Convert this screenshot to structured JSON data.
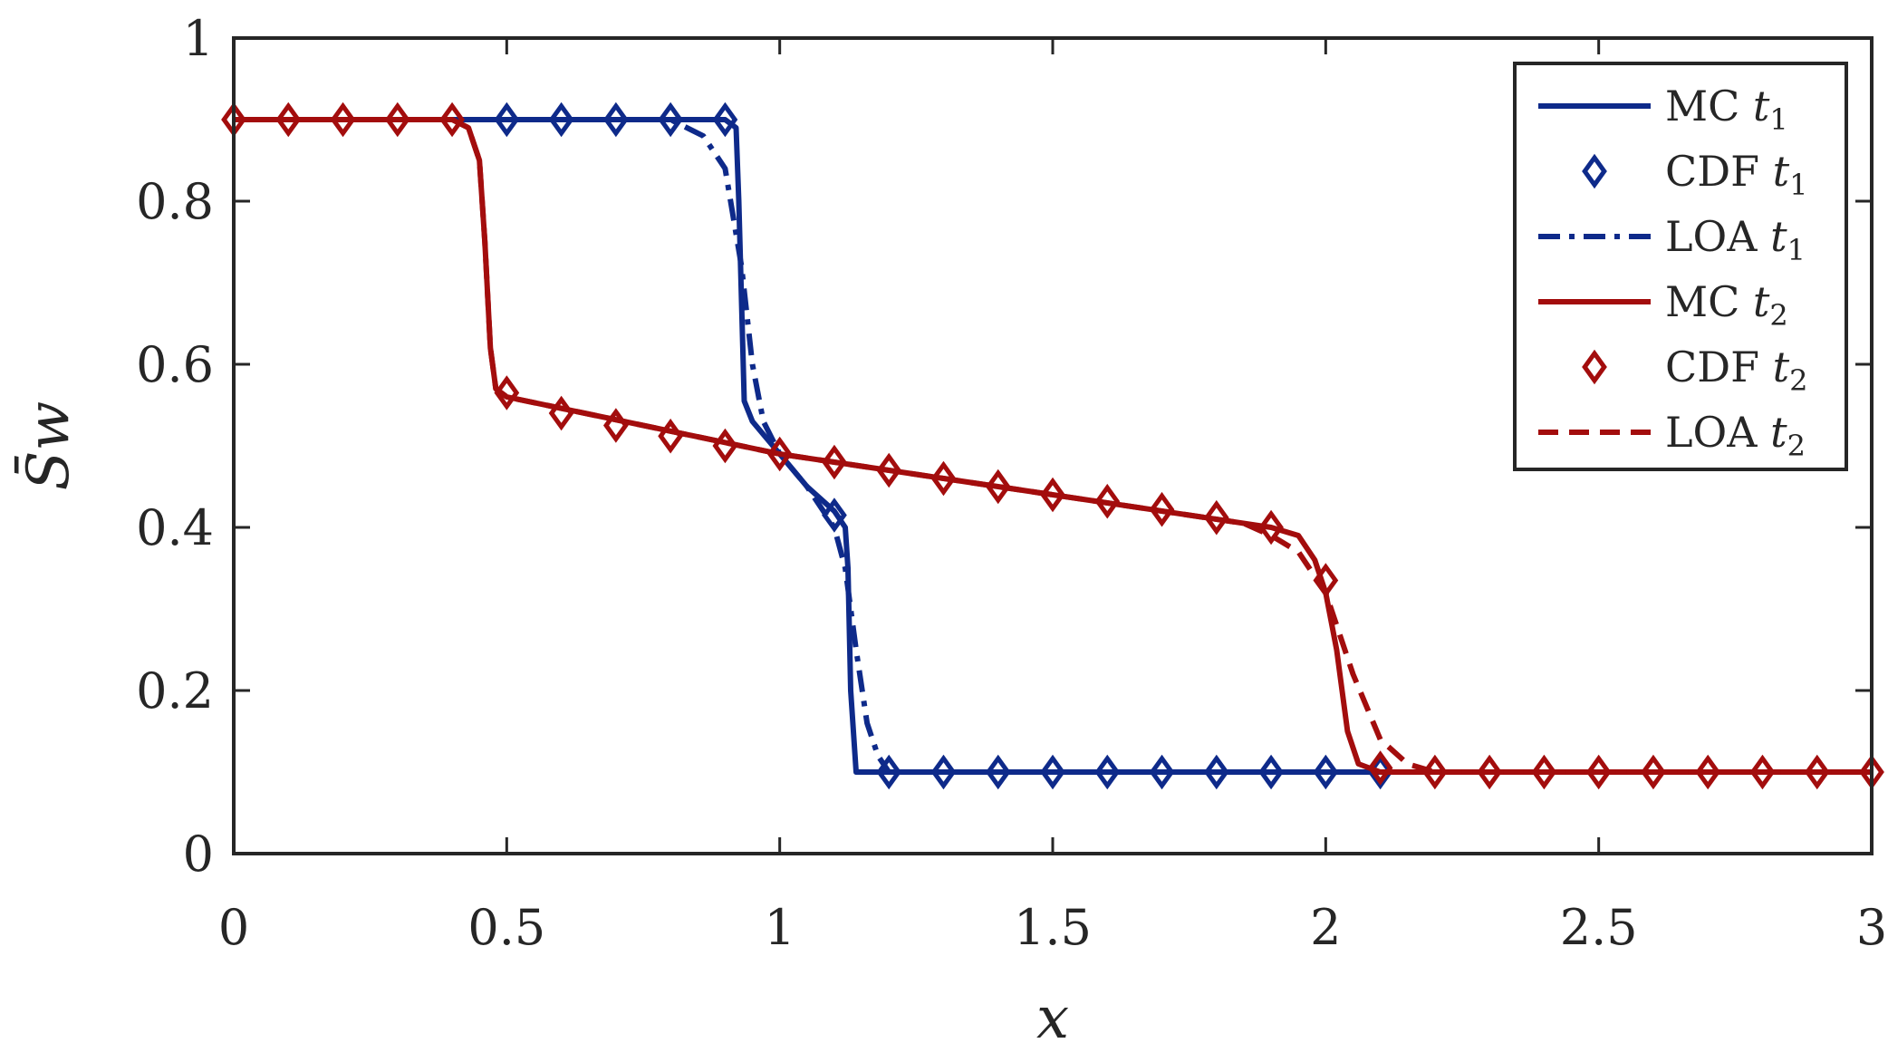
{
  "chart_data": {
    "type": "line",
    "xlabel": "x",
    "ylabel": "S̄w",
    "xlim": [
      0,
      3
    ],
    "ylim": [
      0,
      1
    ],
    "xticks": [
      0,
      0.5,
      1,
      1.5,
      2,
      2.5,
      3
    ],
    "xtick_labels": [
      "0",
      "0.5",
      "1",
      "1.5",
      "2",
      "2.5",
      "3"
    ],
    "yticks": [
      0,
      0.2,
      0.4,
      0.6,
      0.8,
      1
    ],
    "ytick_labels": [
      "0",
      "0.2",
      "0.4",
      "0.6",
      "0.8",
      "1"
    ],
    "grid": false,
    "legend_position": "top-right",
    "colors": {
      "t1": "#0e2a8a",
      "t2": "#a30d0d",
      "axis": "#262626"
    },
    "series": [
      {
        "name": "MC t1",
        "label": "MC",
        "sub": "1",
        "color": "#0e2a8a",
        "style": "solid",
        "marker": "none",
        "x": [
          0,
          0.8,
          0.88,
          0.9,
          0.92,
          0.925,
          0.935,
          0.95,
          1.0,
          1.05,
          1.1,
          1.12,
          1.125,
          1.13,
          1.14,
          1.15,
          1.2,
          1.5,
          2.0,
          2.1
        ],
        "y": [
          0.9,
          0.9,
          0.9,
          0.9,
          0.89,
          0.8,
          0.555,
          0.53,
          0.49,
          0.45,
          0.42,
          0.4,
          0.35,
          0.2,
          0.1,
          0.1,
          0.1,
          0.1,
          0.1,
          0.1
        ]
      },
      {
        "name": "CDF t1",
        "label": "CDF",
        "sub": "1",
        "color": "#0e2a8a",
        "style": "none",
        "marker": "diamond",
        "x": [
          0.5,
          0.6,
          0.7,
          0.8,
          0.9,
          1.1,
          1.2,
          1.3,
          1.4,
          1.5,
          1.6,
          1.7,
          1.8,
          1.9,
          2.0,
          2.1
        ],
        "y": [
          0.9,
          0.9,
          0.9,
          0.9,
          0.9,
          0.415,
          0.1,
          0.1,
          0.1,
          0.1,
          0.1,
          0.1,
          0.1,
          0.1,
          0.1,
          0.1
        ]
      },
      {
        "name": "LOA t1",
        "label": "LOA",
        "sub": "1",
        "color": "#0e2a8a",
        "style": "dashdot",
        "marker": "none",
        "x": [
          0,
          0.8,
          0.86,
          0.9,
          0.93,
          0.95,
          0.97,
          1.0,
          1.05,
          1.1,
          1.12,
          1.14,
          1.16,
          1.18,
          1.2,
          1.25,
          2.1
        ],
        "y": [
          0.9,
          0.9,
          0.88,
          0.84,
          0.72,
          0.6,
          0.53,
          0.49,
          0.45,
          0.4,
          0.35,
          0.25,
          0.16,
          0.12,
          0.1,
          0.1,
          0.1
        ]
      },
      {
        "name": "MC t2",
        "label": "MC",
        "sub": "2",
        "color": "#a30d0d",
        "style": "solid",
        "marker": "none",
        "x": [
          0,
          0.4,
          0.43,
          0.45,
          0.46,
          0.47,
          0.48,
          0.5,
          1.0,
          1.5,
          1.9,
          1.95,
          1.98,
          2.0,
          2.02,
          2.04,
          2.06,
          2.1,
          3.0
        ],
        "y": [
          0.9,
          0.9,
          0.89,
          0.85,
          0.75,
          0.62,
          0.57,
          0.56,
          0.49,
          0.44,
          0.4,
          0.39,
          0.36,
          0.32,
          0.25,
          0.15,
          0.11,
          0.1,
          0.1
        ]
      },
      {
        "name": "CDF t2",
        "label": "CDF",
        "sub": "2",
        "color": "#a30d0d",
        "style": "none",
        "marker": "diamond",
        "x": [
          0,
          0.1,
          0.2,
          0.3,
          0.4,
          0.5,
          0.6,
          0.7,
          0.8,
          0.9,
          1.0,
          1.1,
          1.2,
          1.3,
          1.4,
          1.5,
          1.6,
          1.7,
          1.8,
          1.9,
          2.0,
          2.1,
          2.2,
          2.3,
          2.4,
          2.5,
          2.6,
          2.7,
          2.8,
          2.9,
          3.0
        ],
        "y": [
          0.9,
          0.9,
          0.9,
          0.9,
          0.9,
          0.565,
          0.54,
          0.525,
          0.512,
          0.5,
          0.49,
          0.48,
          0.47,
          0.46,
          0.45,
          0.44,
          0.432,
          0.422,
          0.412,
          0.4,
          0.335,
          0.105,
          0.1,
          0.1,
          0.1,
          0.1,
          0.1,
          0.1,
          0.1,
          0.1,
          0.1
        ]
      },
      {
        "name": "LOA t2",
        "label": "LOA",
        "sub": "2",
        "color": "#a30d0d",
        "style": "dashed",
        "marker": "none",
        "x": [
          0,
          0.4,
          0.43,
          0.45,
          0.46,
          0.47,
          0.48,
          0.5,
          1.0,
          1.5,
          1.85,
          1.9,
          1.95,
          2.0,
          2.05,
          2.1,
          2.15,
          2.2,
          3.0
        ],
        "y": [
          0.9,
          0.9,
          0.89,
          0.85,
          0.75,
          0.62,
          0.57,
          0.56,
          0.49,
          0.44,
          0.405,
          0.39,
          0.37,
          0.32,
          0.22,
          0.14,
          0.11,
          0.1,
          0.1
        ]
      }
    ]
  }
}
